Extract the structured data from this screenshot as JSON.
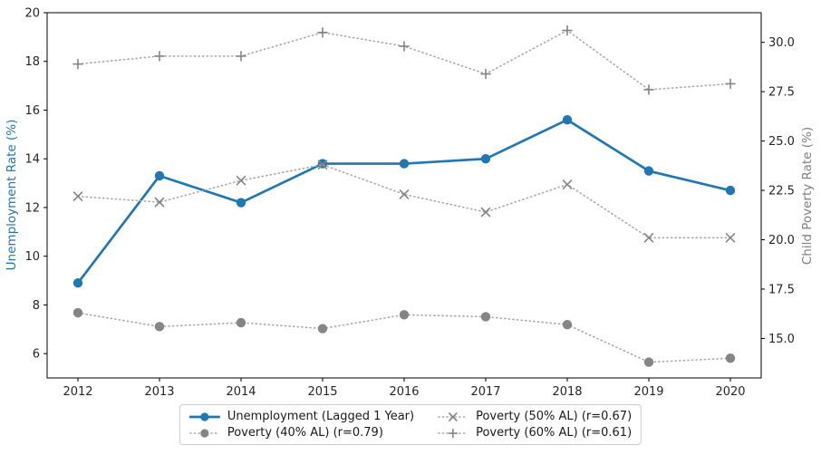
{
  "chart_data": {
    "type": "line",
    "x": [
      "2012",
      "2013",
      "2014",
      "2015",
      "2016",
      "2017",
      "2018",
      "2019",
      "2020"
    ],
    "left_axis": {
      "label": "Unemployment Rate (%)",
      "color": "#1f77b4",
      "ylim": [
        5,
        20
      ],
      "ticks": [
        6,
        8,
        10,
        12,
        14,
        16,
        18,
        20
      ]
    },
    "right_axis": {
      "label": "Child Poverty Rate (%)",
      "color": "#808080",
      "ylim": [
        13,
        31.5
      ],
      "ticks": [
        15.0,
        17.5,
        20.0,
        22.5,
        25.0,
        27.5,
        30.0
      ],
      "tick_labels": [
        "15.0",
        "17.5",
        "20.0",
        "22.5",
        "25.0",
        "27.5",
        "30.0"
      ]
    },
    "series": [
      {
        "name": "Unemployment (Lagged 1 Year)",
        "axis": "left",
        "line_style": "solid",
        "marker": "circle",
        "line_color": "#1f77b4",
        "marker_color": "#1f77b4",
        "values": [
          8.9,
          13.3,
          12.2,
          13.8,
          13.8,
          14.0,
          15.6,
          13.5,
          12.7
        ]
      },
      {
        "name": "Poverty (40% AL) (r=0.79)",
        "axis": "right",
        "line_style": "dotted",
        "marker": "circle",
        "line_color": "#aaaaaa",
        "marker_color": "#858585",
        "values": [
          16.3,
          15.6,
          15.8,
          15.5,
          16.2,
          16.1,
          15.7,
          13.8,
          14.0
        ]
      },
      {
        "name": "Poverty (50% AL) (r=0.67)",
        "axis": "right",
        "line_style": "dotted",
        "marker": "x",
        "line_color": "#aaaaaa",
        "marker_color": "#858585",
        "values": [
          22.2,
          21.9,
          23.0,
          23.8,
          22.3,
          21.4,
          22.8,
          20.1,
          20.1
        ]
      },
      {
        "name": "Poverty (60% AL) (r=0.61)",
        "axis": "right",
        "line_style": "dotted",
        "marker": "plus",
        "line_color": "#aaaaaa",
        "marker_color": "#858585",
        "values": [
          28.9,
          29.3,
          29.3,
          30.5,
          29.8,
          28.4,
          30.6,
          27.6,
          27.9
        ]
      }
    ],
    "legend_position": "bottom-center",
    "grid": false,
    "title": ""
  }
}
